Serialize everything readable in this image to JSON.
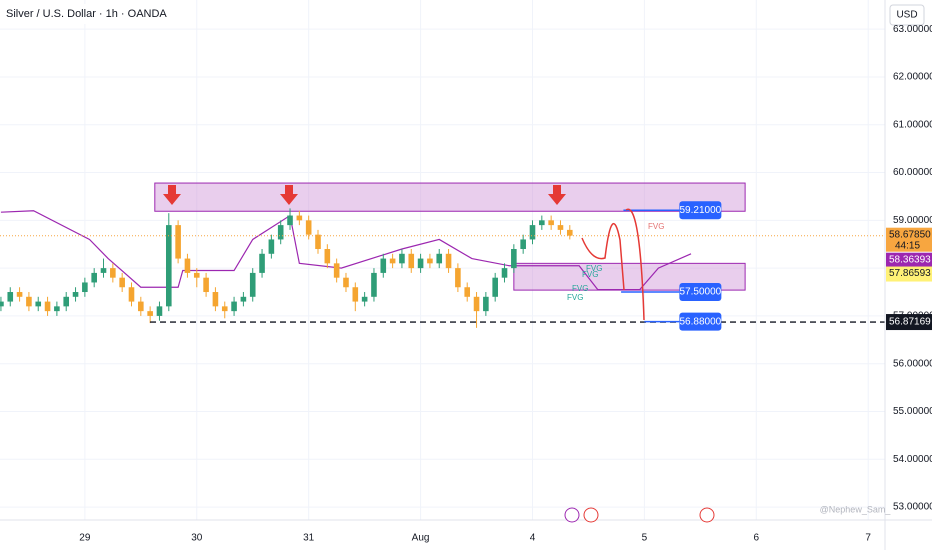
{
  "chart_data": {
    "type": "candlestick",
    "title": "Silver / U.S. Dollar · 1h · OANDA",
    "currency": "USD",
    "watermark": "@Nephew_Sam_",
    "x": [
      -18,
      -16,
      -14,
      -12,
      -10,
      -8,
      -6,
      -4,
      -2,
      0,
      2,
      4,
      6,
      8,
      10,
      12,
      14,
      16,
      18,
      20,
      22,
      24,
      26,
      28,
      30,
      32,
      34,
      36,
      38,
      40,
      42,
      44,
      46,
      48,
      50,
      52,
      54,
      56,
      58,
      60,
      62,
      64,
      66,
      68,
      70,
      72,
      74,
      76,
      78,
      80,
      82,
      84,
      86,
      88,
      90,
      92,
      94,
      96,
      98,
      100,
      102,
      104
    ],
    "open": [
      57.2,
      57.3,
      57.5,
      57.4,
      57.2,
      57.3,
      57.1,
      57.2,
      57.4,
      57.5,
      57.7,
      57.9,
      58.0,
      57.8,
      57.6,
      57.3,
      57.1,
      57.0,
      57.2,
      58.9,
      58.2,
      57.9,
      57.8,
      57.5,
      57.2,
      57.1,
      57.3,
      57.4,
      57.9,
      58.3,
      58.6,
      58.9,
      59.1,
      59.0,
      58.7,
      58.4,
      58.1,
      57.8,
      57.6,
      57.3,
      57.4,
      57.9,
      58.2,
      58.1,
      58.3,
      58.0,
      58.2,
      58.1,
      58.3,
      58.0,
      57.6,
      57.4,
      57.1,
      57.4,
      57.8,
      58.0,
      58.4,
      58.6,
      58.9,
      59.0,
      58.9,
      58.8
    ],
    "high": [
      57.4,
      57.6,
      57.6,
      57.5,
      57.4,
      57.4,
      57.3,
      57.5,
      57.6,
      57.8,
      58.0,
      58.2,
      58.1,
      57.9,
      57.7,
      57.4,
      57.2,
      57.3,
      59.15,
      59.0,
      58.3,
      58.0,
      57.9,
      57.6,
      57.3,
      57.4,
      57.5,
      58.0,
      58.4,
      58.7,
      59.0,
      59.25,
      59.2,
      59.1,
      58.8,
      58.5,
      58.2,
      57.9,
      57.7,
      57.5,
      58.0,
      58.3,
      58.3,
      58.4,
      58.4,
      58.3,
      58.3,
      58.4,
      58.4,
      58.1,
      57.7,
      57.5,
      57.5,
      57.9,
      58.1,
      58.5,
      58.7,
      59.0,
      59.1,
      59.1,
      59.0,
      58.9
    ],
    "low": [
      57.1,
      57.2,
      57.3,
      57.1,
      57.1,
      57.0,
      57.0,
      57.1,
      57.3,
      57.4,
      57.6,
      57.8,
      57.7,
      57.5,
      57.2,
      57.0,
      56.85,
      56.9,
      57.1,
      58.1,
      57.8,
      57.6,
      57.4,
      57.1,
      56.95,
      57.0,
      57.2,
      57.3,
      57.8,
      58.2,
      58.5,
      58.8,
      58.9,
      58.6,
      58.3,
      58.0,
      57.7,
      57.5,
      57.1,
      57.2,
      57.3,
      57.8,
      58.0,
      58.0,
      57.9,
      57.9,
      58.0,
      58.0,
      57.9,
      57.5,
      57.3,
      56.75,
      57.0,
      57.3,
      57.7,
      57.9,
      58.3,
      58.5,
      58.8,
      58.8,
      58.7,
      58.6
    ],
    "close": [
      57.3,
      57.5,
      57.4,
      57.2,
      57.3,
      57.1,
      57.2,
      57.4,
      57.5,
      57.7,
      57.9,
      58.0,
      57.8,
      57.6,
      57.3,
      57.1,
      57.0,
      57.2,
      58.9,
      58.2,
      57.9,
      57.8,
      57.5,
      57.2,
      57.1,
      57.3,
      57.4,
      57.9,
      58.3,
      58.6,
      58.9,
      59.1,
      59.0,
      58.7,
      58.4,
      58.1,
      57.8,
      57.6,
      57.3,
      57.4,
      57.9,
      58.2,
      58.1,
      58.3,
      58.0,
      58.2,
      58.1,
      58.3,
      58.0,
      57.6,
      57.4,
      57.1,
      57.4,
      57.8,
      58.0,
      58.4,
      58.6,
      58.9,
      59.0,
      58.9,
      58.8,
      58.68
    ],
    "up_color": "#2f9d77",
    "down_color": "#f5a530",
    "indicator": {
      "color": "#9c27b0",
      "x": [
        -18,
        -11,
        1,
        5,
        12,
        20,
        21,
        32,
        36,
        44,
        46,
        55,
        68,
        76,
        83,
        91,
        106,
        110,
        119,
        123,
        130
      ],
      "values": [
        59.17,
        59.2,
        58.6,
        58.2,
        57.6,
        57.6,
        57.95,
        57.95,
        58.6,
        59.1,
        58.1,
        58.0,
        58.4,
        58.6,
        58.2,
        58.05,
        58.05,
        57.55,
        57.55,
        58.0,
        58.3
      ]
    },
    "zones": [
      {
        "color": "#ce93d8",
        "x0": 15,
        "x1": 141.6,
        "top": 59.78,
        "bottom": 59.19
      },
      {
        "color": "#ce93d8",
        "x0": 92,
        "x1": 141.6,
        "top": 58.1,
        "bottom": 57.54
      }
    ],
    "levels": [
      {
        "value": 59.21,
        "label": "59.21000",
        "x0": 115.5,
        "x1": 127.5
      },
      {
        "value": 57.5,
        "label": "57.50000",
        "x0": 115,
        "x1": 127.5
      },
      {
        "value": 56.88,
        "label": "56.88000",
        "x0": 120,
        "x1": 127.5
      }
    ],
    "fvg_labels": [
      "FVG",
      "FVG",
      "FVG",
      "FVG",
      "FVG"
    ],
    "support": {
      "value": 56.87169,
      "label": "56.87169"
    },
    "price_labels": [
      {
        "value": 58.6785,
        "label": "58.67850",
        "color": "#f7a640"
      },
      {
        "value": 58.36393,
        "label": "58.36393",
        "color": "#9c27b0"
      },
      {
        "value": 57.86593,
        "label": "57.86593",
        "color": "#fff176"
      }
    ],
    "countdown": "44:15",
    "xlim": [
      -18.2,
      171.6
    ],
    "xticks": [
      {
        "value": 0,
        "label": "29"
      },
      {
        "value": 24,
        "label": "30"
      },
      {
        "value": 48,
        "label": "31"
      },
      {
        "value": 72,
        "label": "Aug"
      },
      {
        "value": 96,
        "label": "4"
      },
      {
        "value": 120,
        "label": "5"
      },
      {
        "value": 144,
        "label": "6"
      },
      {
        "value": 168,
        "label": "7"
      }
    ],
    "ylim": [
      52.73,
      63.61
    ],
    "yticks": [
      {
        "value": 53,
        "label": "53.00000"
      },
      {
        "value": 54,
        "label": "54.00000"
      },
      {
        "value": 55,
        "label": "55.00000"
      },
      {
        "value": 56,
        "label": "56.00000"
      },
      {
        "value": 57,
        "label": "57.00000"
      },
      {
        "value": 58,
        "label": "58.00000"
      },
      {
        "value": 59,
        "label": "59.00000"
      },
      {
        "value": 60,
        "label": "60.00000"
      },
      {
        "value": 61,
        "label": "61.00000"
      },
      {
        "value": 62,
        "label": "62.00000"
      },
      {
        "value": 63,
        "label": "63.00000"
      }
    ],
    "grid": true
  }
}
